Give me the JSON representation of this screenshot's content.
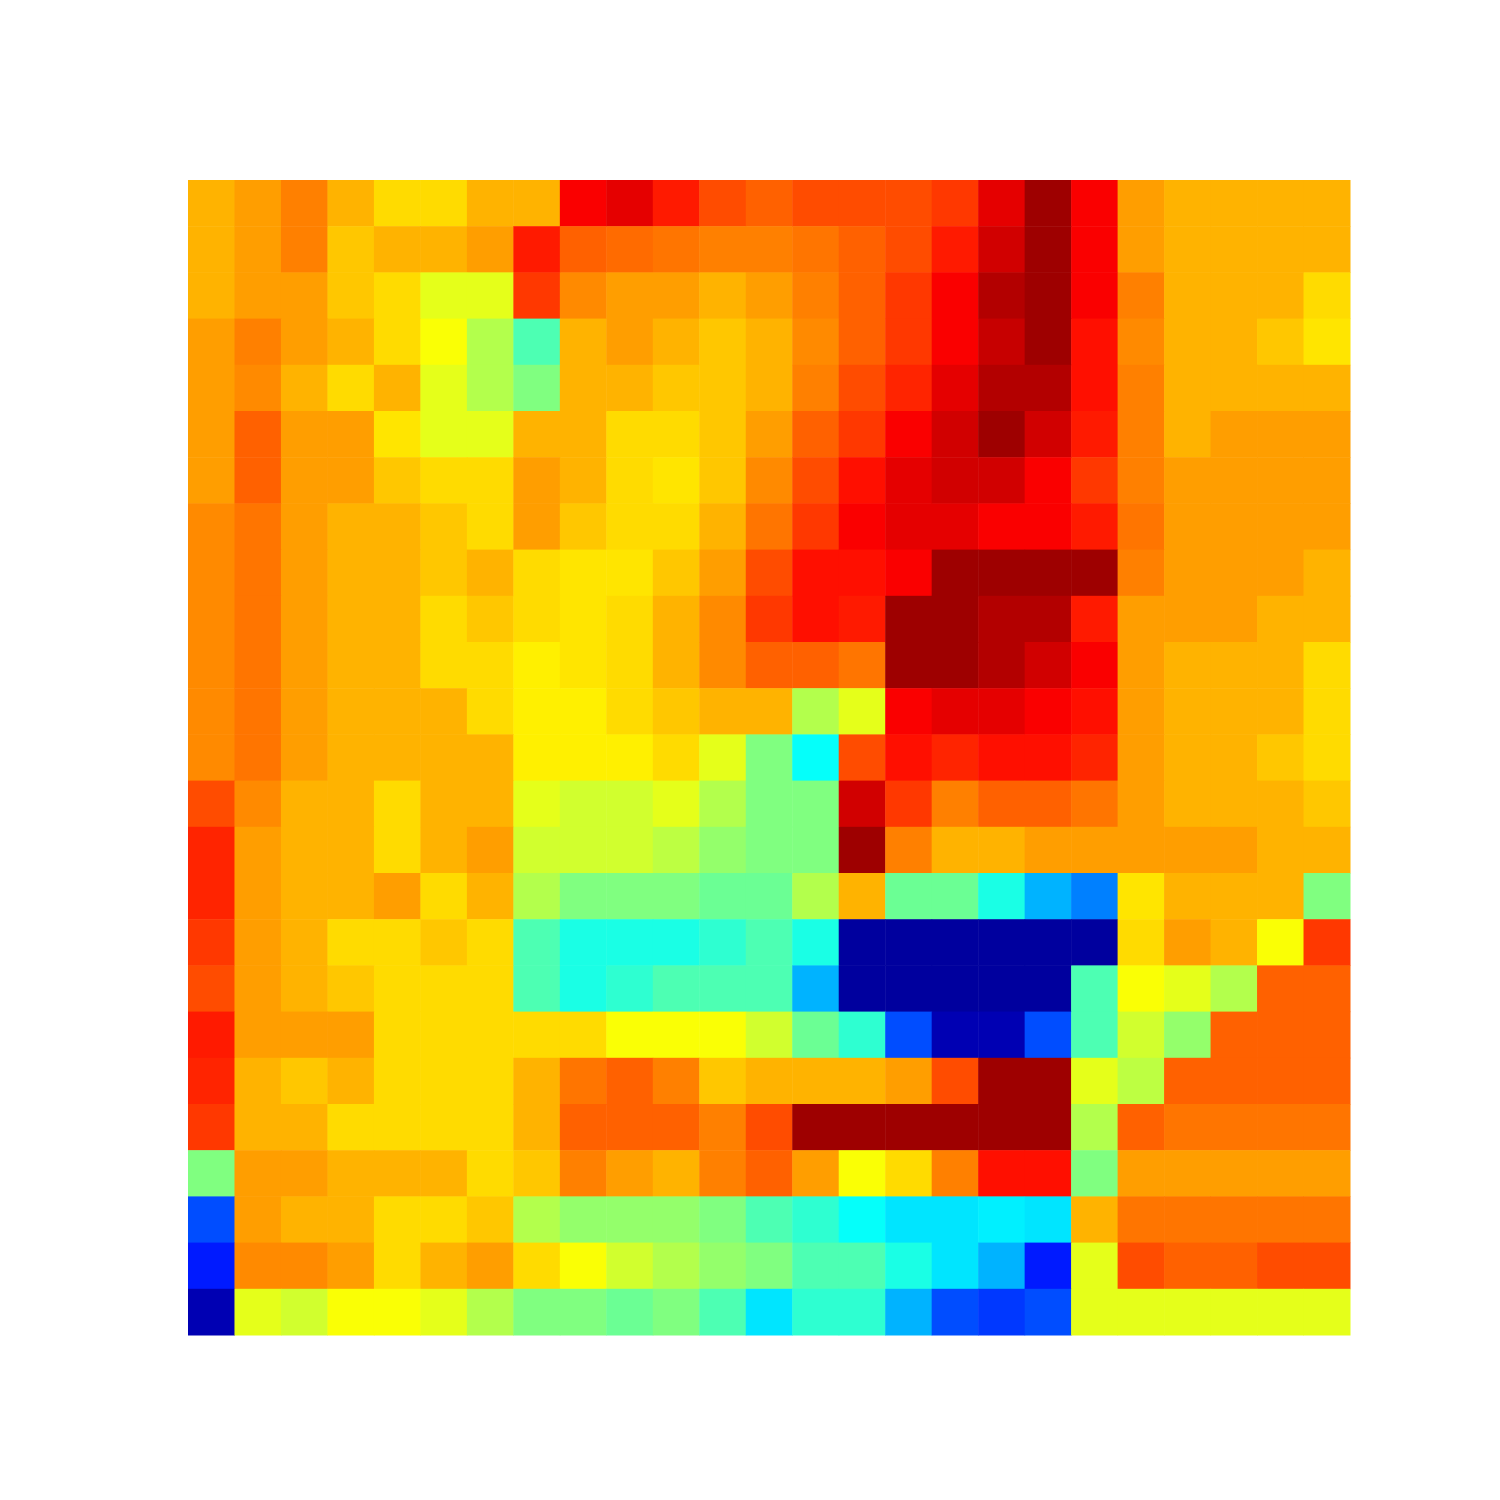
{
  "chart_data": {
    "type": "heatmap",
    "tick_labels": false,
    "zlim": [
      0,
      1
    ],
    "z": [
      [
        0.7,
        0.72,
        0.75,
        0.7,
        0.66,
        0.66,
        0.7,
        0.7,
        0.88,
        0.9,
        0.85,
        0.8,
        0.78,
        0.8,
        0.8,
        0.8,
        0.82,
        0.9,
        0.97,
        0.88,
        0.72,
        0.7,
        0.7,
        0.7,
        0.7
      ],
      [
        0.7,
        0.72,
        0.75,
        0.68,
        0.7,
        0.7,
        0.72,
        0.85,
        0.78,
        0.77,
        0.76,
        0.75,
        0.75,
        0.76,
        0.78,
        0.8,
        0.85,
        0.92,
        0.97,
        0.88,
        0.72,
        0.7,
        0.7,
        0.7,
        0.7
      ],
      [
        0.7,
        0.72,
        0.72,
        0.68,
        0.66,
        0.6,
        0.6,
        0.82,
        0.74,
        0.72,
        0.72,
        0.7,
        0.72,
        0.75,
        0.78,
        0.82,
        0.88,
        0.95,
        0.97,
        0.88,
        0.75,
        0.7,
        0.7,
        0.7,
        0.66
      ],
      [
        0.72,
        0.75,
        0.72,
        0.7,
        0.66,
        0.62,
        0.55,
        0.45,
        0.7,
        0.72,
        0.7,
        0.68,
        0.7,
        0.74,
        0.78,
        0.82,
        0.88,
        0.93,
        0.97,
        0.86,
        0.74,
        0.7,
        0.7,
        0.68,
        0.65
      ],
      [
        0.72,
        0.74,
        0.7,
        0.66,
        0.7,
        0.6,
        0.55,
        0.5,
        0.7,
        0.7,
        0.68,
        0.68,
        0.7,
        0.75,
        0.8,
        0.84,
        0.9,
        0.95,
        0.95,
        0.86,
        0.75,
        0.7,
        0.7,
        0.7,
        0.7
      ],
      [
        0.72,
        0.78,
        0.72,
        0.72,
        0.65,
        0.6,
        0.6,
        0.7,
        0.7,
        0.66,
        0.66,
        0.68,
        0.72,
        0.78,
        0.82,
        0.88,
        0.92,
        0.97,
        0.92,
        0.85,
        0.75,
        0.7,
        0.72,
        0.72,
        0.72
      ],
      [
        0.72,
        0.78,
        0.72,
        0.72,
        0.68,
        0.66,
        0.66,
        0.72,
        0.7,
        0.66,
        0.65,
        0.68,
        0.74,
        0.8,
        0.86,
        0.9,
        0.92,
        0.92,
        0.88,
        0.82,
        0.75,
        0.72,
        0.72,
        0.72,
        0.72
      ],
      [
        0.74,
        0.76,
        0.72,
        0.7,
        0.7,
        0.68,
        0.66,
        0.72,
        0.68,
        0.66,
        0.66,
        0.7,
        0.76,
        0.82,
        0.88,
        0.9,
        0.9,
        0.88,
        0.88,
        0.85,
        0.76,
        0.72,
        0.72,
        0.72,
        0.72
      ],
      [
        0.74,
        0.76,
        0.72,
        0.7,
        0.7,
        0.68,
        0.7,
        0.66,
        0.65,
        0.65,
        0.68,
        0.72,
        0.8,
        0.86,
        0.86,
        0.88,
        0.97,
        0.97,
        0.97,
        0.97,
        0.75,
        0.72,
        0.72,
        0.72,
        0.7
      ],
      [
        0.74,
        0.76,
        0.72,
        0.7,
        0.7,
        0.66,
        0.68,
        0.66,
        0.65,
        0.66,
        0.7,
        0.74,
        0.82,
        0.86,
        0.85,
        0.97,
        0.97,
        0.95,
        0.95,
        0.85,
        0.72,
        0.72,
        0.72,
        0.7,
        0.7
      ],
      [
        0.74,
        0.76,
        0.72,
        0.7,
        0.7,
        0.66,
        0.66,
        0.64,
        0.65,
        0.66,
        0.7,
        0.74,
        0.78,
        0.78,
        0.76,
        0.97,
        0.97,
        0.95,
        0.92,
        0.88,
        0.72,
        0.7,
        0.7,
        0.7,
        0.66
      ],
      [
        0.74,
        0.76,
        0.72,
        0.7,
        0.7,
        0.7,
        0.66,
        0.64,
        0.64,
        0.66,
        0.68,
        0.7,
        0.7,
        0.55,
        0.6,
        0.88,
        0.9,
        0.9,
        0.88,
        0.86,
        0.72,
        0.7,
        0.7,
        0.7,
        0.66
      ],
      [
        0.74,
        0.76,
        0.72,
        0.7,
        0.7,
        0.7,
        0.7,
        0.64,
        0.64,
        0.64,
        0.66,
        0.6,
        0.5,
        0.38,
        0.8,
        0.86,
        0.84,
        0.86,
        0.86,
        0.84,
        0.72,
        0.7,
        0.7,
        0.68,
        0.66
      ],
      [
        0.8,
        0.74,
        0.7,
        0.7,
        0.66,
        0.7,
        0.7,
        0.6,
        0.58,
        0.58,
        0.6,
        0.55,
        0.5,
        0.5,
        0.92,
        0.82,
        0.75,
        0.78,
        0.78,
        0.76,
        0.72,
        0.7,
        0.7,
        0.7,
        0.68
      ],
      [
        0.84,
        0.72,
        0.7,
        0.7,
        0.66,
        0.7,
        0.72,
        0.58,
        0.58,
        0.58,
        0.56,
        0.52,
        0.5,
        0.5,
        0.97,
        0.75,
        0.7,
        0.7,
        0.72,
        0.72,
        0.72,
        0.72,
        0.72,
        0.7,
        0.7
      ],
      [
        0.84,
        0.72,
        0.7,
        0.7,
        0.72,
        0.66,
        0.7,
        0.55,
        0.5,
        0.5,
        0.5,
        0.48,
        0.48,
        0.55,
        0.7,
        0.48,
        0.48,
        0.4,
        0.3,
        0.25,
        0.65,
        0.7,
        0.7,
        0.7,
        0.5
      ],
      [
        0.82,
        0.72,
        0.7,
        0.66,
        0.66,
        0.68,
        0.66,
        0.45,
        0.4,
        0.4,
        0.4,
        0.42,
        0.45,
        0.4,
        0.03,
        0.03,
        0.03,
        0.03,
        0.03,
        0.03,
        0.66,
        0.72,
        0.7,
        0.62,
        0.82
      ],
      [
        0.8,
        0.72,
        0.7,
        0.68,
        0.66,
        0.66,
        0.66,
        0.45,
        0.4,
        0.42,
        0.45,
        0.45,
        0.45,
        0.3,
        0.03,
        0.03,
        0.03,
        0.03,
        0.03,
        0.45,
        0.62,
        0.6,
        0.55,
        0.78,
        0.78
      ],
      [
        0.85,
        0.72,
        0.72,
        0.72,
        0.66,
        0.66,
        0.66,
        0.66,
        0.66,
        0.62,
        0.62,
        0.62,
        0.58,
        0.48,
        0.42,
        0.2,
        0.05,
        0.05,
        0.2,
        0.45,
        0.58,
        0.52,
        0.78,
        0.78,
        0.78
      ],
      [
        0.84,
        0.7,
        0.68,
        0.7,
        0.66,
        0.66,
        0.66,
        0.7,
        0.76,
        0.78,
        0.75,
        0.68,
        0.7,
        0.7,
        0.7,
        0.72,
        0.8,
        0.97,
        0.97,
        0.6,
        0.56,
        0.78,
        0.78,
        0.78,
        0.78
      ],
      [
        0.82,
        0.7,
        0.7,
        0.66,
        0.66,
        0.66,
        0.66,
        0.7,
        0.78,
        0.78,
        0.78,
        0.75,
        0.8,
        0.97,
        0.97,
        0.97,
        0.97,
        0.97,
        0.97,
        0.55,
        0.78,
        0.76,
        0.76,
        0.76,
        0.76
      ],
      [
        0.5,
        0.72,
        0.72,
        0.7,
        0.7,
        0.7,
        0.66,
        0.68,
        0.75,
        0.72,
        0.7,
        0.75,
        0.78,
        0.72,
        0.62,
        0.66,
        0.75,
        0.86,
        0.86,
        0.5,
        0.72,
        0.72,
        0.72,
        0.72,
        0.72
      ],
      [
        0.2,
        0.72,
        0.7,
        0.7,
        0.66,
        0.66,
        0.68,
        0.55,
        0.52,
        0.52,
        0.52,
        0.5,
        0.45,
        0.42,
        0.38,
        0.35,
        0.35,
        0.36,
        0.35,
        0.7,
        0.76,
        0.76,
        0.76,
        0.76,
        0.76
      ],
      [
        0.15,
        0.74,
        0.74,
        0.72,
        0.66,
        0.7,
        0.72,
        0.66,
        0.62,
        0.58,
        0.55,
        0.52,
        0.5,
        0.45,
        0.45,
        0.4,
        0.35,
        0.3,
        0.15,
        0.6,
        0.8,
        0.78,
        0.78,
        0.8,
        0.8
      ],
      [
        0.05,
        0.6,
        0.58,
        0.62,
        0.62,
        0.6,
        0.55,
        0.5,
        0.5,
        0.48,
        0.5,
        0.45,
        0.35,
        0.42,
        0.42,
        0.3,
        0.2,
        0.18,
        0.2,
        0.6,
        0.6,
        0.6,
        0.6,
        0.6,
        0.6
      ]
    ]
  }
}
